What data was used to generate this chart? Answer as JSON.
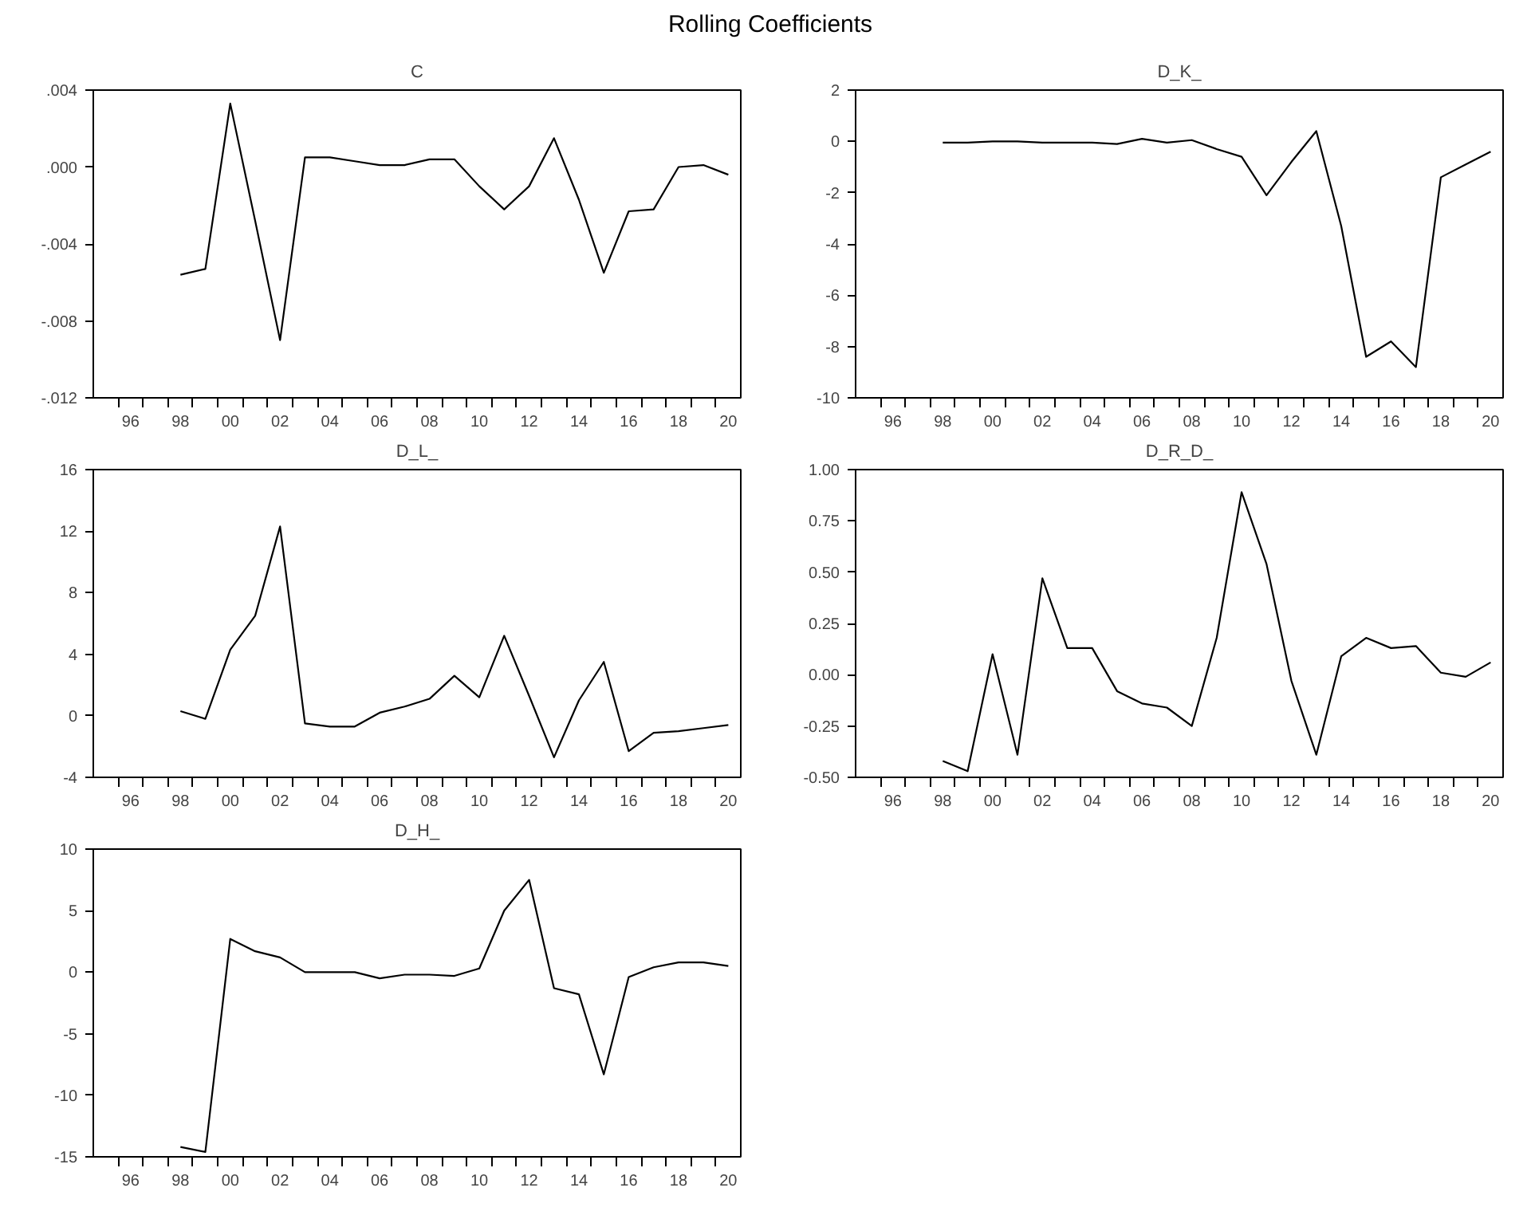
{
  "chart_data": [
    {
      "type": "line",
      "title": "C",
      "annotations": [
        "Rolling Coefficients"
      ],
      "categories": [
        "96",
        null,
        "98",
        null,
        "00",
        null,
        "02",
        null,
        "04",
        null,
        "06",
        null,
        "08",
        null,
        "10",
        null,
        "12",
        null,
        "14",
        null,
        "16",
        null,
        "18",
        null,
        "20"
      ],
      "series": [
        {
          "color": "#000000",
          "values": [
            null,
            null,
            -0.0056,
            -0.0053,
            0.0033,
            -0.0028,
            -0.009,
            0.0005,
            0.0005,
            0.0003,
            0.0001,
            0.0001,
            0.0004,
            0.0004,
            -0.001,
            -0.0022,
            -0.001,
            0.0015,
            -0.0017,
            -0.0055,
            -0.0023,
            -0.0022,
            0.0,
            0.0001,
            -0.0004
          ]
        }
      ],
      "ylim": [
        -0.012,
        0.004
      ],
      "yticks": [
        {
          "value": -0.012,
          "label": "-.012"
        },
        {
          "value": -0.008,
          "label": "-.008"
        },
        {
          "value": -0.004,
          "label": "-.004"
        },
        {
          "value": 0,
          "label": ".000"
        },
        {
          "value": 0.004,
          "label": ".004"
        }
      ]
    },
    {
      "type": "line",
      "title": "D_K_",
      "categories": [
        "96",
        null,
        "98",
        null,
        "00",
        null,
        "02",
        null,
        "04",
        null,
        "06",
        null,
        "08",
        null,
        "10",
        null,
        "12",
        null,
        "14",
        null,
        "16",
        null,
        "18",
        null,
        "20"
      ],
      "series": [
        {
          "color": "#000000",
          "values": [
            null,
            null,
            -0.05,
            -0.05,
            0.0,
            0.0,
            -0.05,
            -0.05,
            -0.05,
            -0.1,
            0.1,
            -0.05,
            0.05,
            -0.3,
            -0.6,
            -2.1,
            -0.8,
            0.4,
            -3.3,
            -8.4,
            -7.8,
            -8.8,
            -1.4,
            -0.9,
            -0.4
          ]
        }
      ],
      "ylim": [
        -10,
        2
      ],
      "yticks": [
        -10,
        -8,
        -6,
        -4,
        -2,
        0,
        2
      ]
    },
    {
      "type": "line",
      "title": "D_L_",
      "categories": [
        "96",
        null,
        "98",
        null,
        "00",
        null,
        "02",
        null,
        "04",
        null,
        "06",
        null,
        "08",
        null,
        "10",
        null,
        "12",
        null,
        "14",
        null,
        "16",
        null,
        "18",
        null,
        "20"
      ],
      "series": [
        {
          "color": "#000000",
          "values": [
            null,
            null,
            0.3,
            -0.2,
            4.3,
            6.5,
            12.3,
            -0.5,
            -0.7,
            -0.7,
            0.2,
            0.6,
            1.1,
            2.6,
            1.2,
            5.2,
            1.3,
            -2.7,
            1.0,
            3.5,
            -2.3,
            -1.1,
            -1.0,
            -0.8,
            -0.6
          ]
        }
      ],
      "ylim": [
        -4,
        16
      ],
      "yticks": [
        -4,
        0,
        4,
        8,
        12,
        16
      ]
    },
    {
      "type": "line",
      "title": "D_R_D_",
      "categories": [
        "96",
        null,
        "98",
        null,
        "00",
        null,
        "02",
        null,
        "04",
        null,
        "06",
        null,
        "08",
        null,
        "10",
        null,
        "12",
        null,
        "14",
        null,
        "16",
        null,
        "18",
        null,
        "20"
      ],
      "series": [
        {
          "color": "#000000",
          "values": [
            null,
            null,
            -0.42,
            -0.47,
            0.1,
            -0.39,
            0.47,
            0.13,
            0.13,
            -0.08,
            -0.14,
            -0.16,
            -0.25,
            0.18,
            0.89,
            0.54,
            -0.03,
            -0.39,
            0.09,
            0.18,
            0.13,
            0.14,
            0.01,
            -0.01,
            0.06
          ]
        }
      ],
      "ylim": [
        -0.5,
        1.0
      ],
      "yticks": [
        {
          "value": -0.5,
          "label": "-0.50"
        },
        {
          "value": -0.25,
          "label": "-0.25"
        },
        {
          "value": 0,
          "label": "0.00"
        },
        {
          "value": 0.25,
          "label": "0.25"
        },
        {
          "value": 0.5,
          "label": "0.50"
        },
        {
          "value": 0.75,
          "label": "0.75"
        },
        {
          "value": 1.0,
          "label": "1.00"
        }
      ]
    },
    {
      "type": "line",
      "title": "D_H_",
      "categories": [
        "96",
        null,
        "98",
        null,
        "00",
        null,
        "02",
        null,
        "04",
        null,
        "06",
        null,
        "08",
        null,
        "10",
        null,
        "12",
        null,
        "14",
        null,
        "16",
        null,
        "18",
        null,
        "20"
      ],
      "series": [
        {
          "color": "#000000",
          "values": [
            null,
            null,
            -14.2,
            -14.6,
            2.7,
            1.7,
            1.2,
            0.0,
            0.0,
            0.0,
            -0.5,
            -0.2,
            -0.2,
            -0.3,
            0.3,
            5.0,
            7.5,
            -1.3,
            -1.8,
            -8.3,
            -0.4,
            0.4,
            0.8,
            0.8,
            0.5
          ]
        }
      ],
      "ylim": [
        -15,
        10
      ],
      "yticks": [
        -15,
        -10,
        -5,
        0,
        5,
        10
      ]
    }
  ]
}
